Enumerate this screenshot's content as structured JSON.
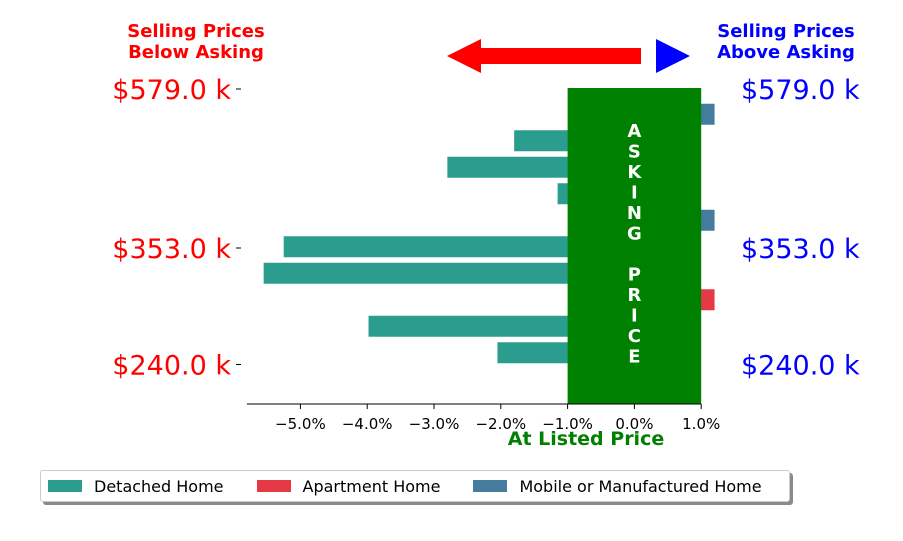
{
  "chart_data": {
    "type": "bar",
    "orientation": "horizontal",
    "header_left": [
      "Selling Prices",
      "Below Asking"
    ],
    "header_right": [
      "Selling Prices",
      "Above Asking"
    ],
    "xlabel": "At Listed Price",
    "xlim": [
      -5.8,
      1.0
    ],
    "xticks": [
      "−5.0%",
      "−4.0%",
      "−3.0%",
      "−2.0%",
      "−1.0%",
      "0.0%",
      "1.0%"
    ],
    "xtick_values": [
      -5.0,
      -4.0,
      -3.0,
      -2.0,
      -1.0,
      0.0,
      1.0
    ],
    "band_label": "ASKING PRICE",
    "band_text": [
      "A",
      "S",
      "K",
      "I",
      "N",
      "G",
      "",
      "P",
      "R",
      "I",
      "C",
      "E"
    ],
    "band_range": [
      -1.0,
      1.0
    ],
    "y_tick_labels": [
      "$579.0 k",
      "$353.0 k",
      "$240.0 k"
    ],
    "bars": [
      {
        "value": 1.2,
        "type": "Mobile or Manufactured Home"
      },
      {
        "value": -1.8,
        "type": "Detached Home"
      },
      {
        "value": -2.8,
        "type": "Detached Home"
      },
      {
        "value": -1.15,
        "type": "Detached Home"
      },
      {
        "value": 1.2,
        "type": "Mobile or Manufactured Home"
      },
      {
        "value": -5.25,
        "type": "Detached Home"
      },
      {
        "value": -5.55,
        "type": "Detached Home"
      },
      {
        "value": 1.2,
        "type": "Apartment Home"
      },
      {
        "value": -3.98,
        "type": "Detached Home"
      },
      {
        "value": -2.05,
        "type": "Detached Home"
      }
    ],
    "legend": [
      "Detached Home",
      "Apartment Home",
      "Mobile or Manufactured Home"
    ],
    "legend_position": "bottom",
    "colors": {
      "Detached Home": "#2a9d8f",
      "Apartment Home": "#e63946",
      "Mobile or Manufactured Home": "#457b9d",
      "band": "#008000",
      "left_labels": "#ff0000",
      "right_labels": "#0000ff",
      "left_arrow": "#ff0000",
      "right_arrow": "#0000ff"
    }
  }
}
